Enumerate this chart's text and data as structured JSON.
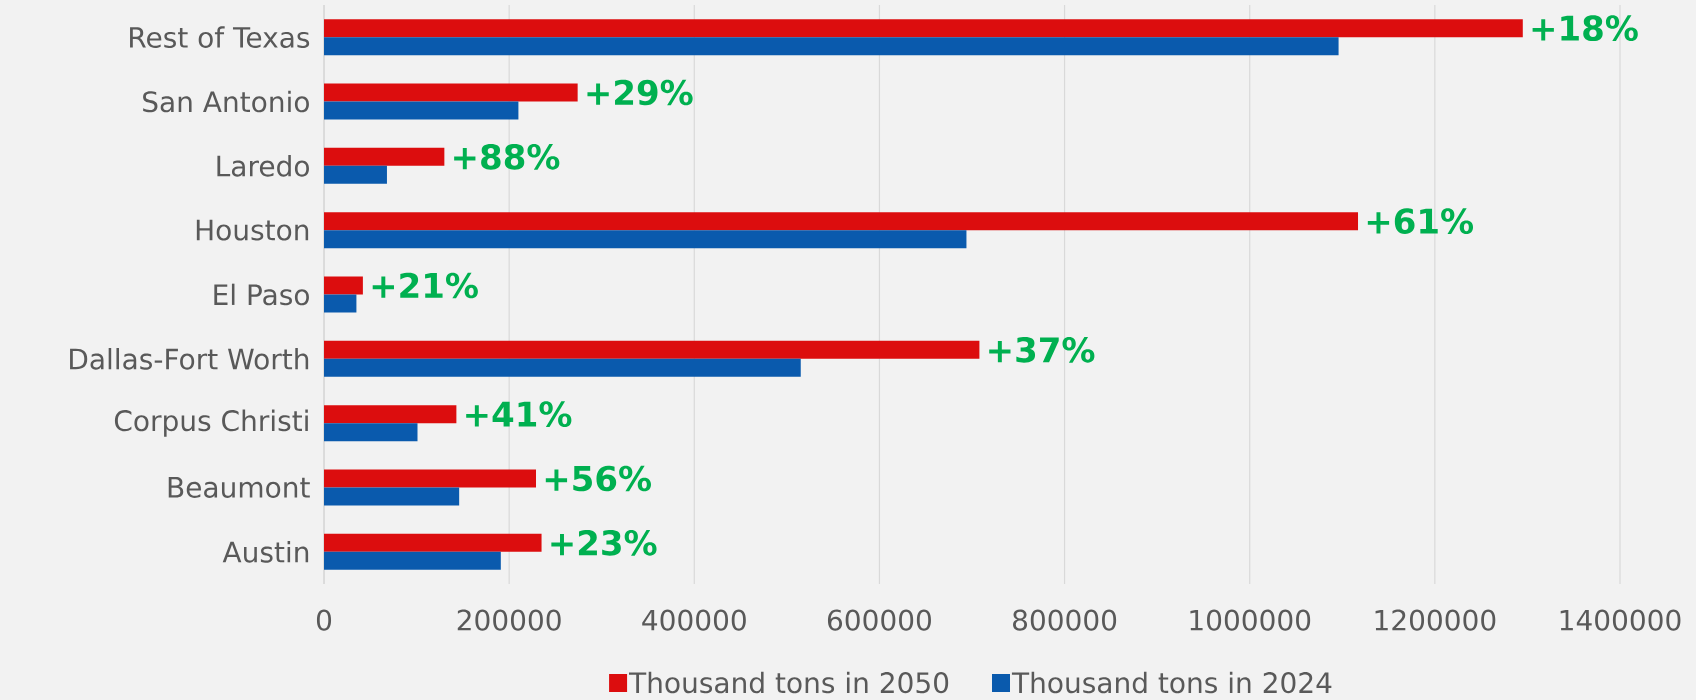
{
  "chart_data": {
    "type": "bar",
    "orientation": "horizontal",
    "categories": [
      "Rest of Texas",
      "San Antonio",
      "Laredo",
      "Houston",
      "El Paso",
      "Dallas-Fort Worth",
      "Corpus Christi",
      "Beaumont",
      "Austin"
    ],
    "series": [
      {
        "name": "Thousand tons in 2050",
        "color": "#dc0d0e",
        "values": [
          1295000,
          274000,
          130000,
          1117000,
          42000,
          708000,
          143000,
          229000,
          235000
        ]
      },
      {
        "name": "Thousand tons in 2024",
        "color": "#0a5aad",
        "values": [
          1096000,
          210000,
          68000,
          694000,
          35000,
          515000,
          101000,
          146000,
          191000
        ]
      }
    ],
    "xlim": [
      0,
      1400000
    ],
    "xticks": [
      0,
      200000,
      400000,
      600000,
      800000,
      1000000,
      1200000,
      1400000
    ],
    "grid": "x",
    "legend": "bottom",
    "annotations": [
      {
        "text": "+18%",
        "x": 1295000,
        "y": "Rest of Texas"
      },
      {
        "text": "+29%",
        "x": 274000,
        "y": "San Antonio"
      },
      {
        "text": "+88%",
        "x": 130000,
        "y": "Laredo"
      },
      {
        "text": "+61%",
        "x": 1117000,
        "y": "Houston"
      },
      {
        "text": "+21%",
        "x": 42000,
        "y": "El Paso"
      },
      {
        "text": "+37%",
        "x": 708000,
        "y": "Dallas-Fort Worth"
      },
      {
        "text": "+41%",
        "x": 143000,
        "y": "Corpus Christi"
      },
      {
        "text": "+56%",
        "x": 229000,
        "y": "Beaumont"
      },
      {
        "text": "+23%",
        "x": 235000,
        "y": "Austin"
      }
    ]
  }
}
